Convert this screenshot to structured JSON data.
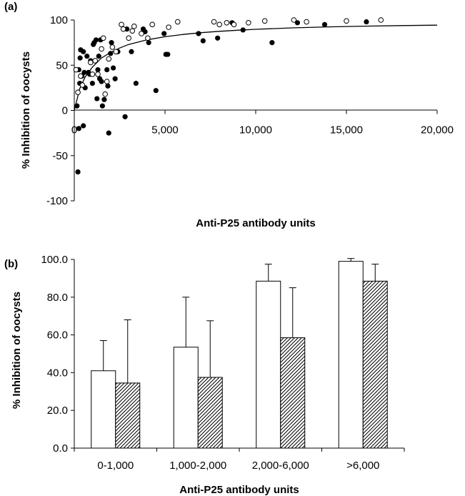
{
  "chart_data": [
    {
      "panel_label": "(a)",
      "type": "scatter",
      "title": "",
      "xlabel": "Anti-P25 antibody units",
      "ylabel": "% Inhibition of oocysts",
      "xlim": [
        0,
        20000
      ],
      "ylim": [
        -100,
        100
      ],
      "x_ticks": [
        0,
        5000,
        10000,
        15000,
        20000
      ],
      "x_tick_labels": [
        "0",
        "5,000",
        "10,000",
        "15,000",
        "20,000"
      ],
      "y_ticks": [
        -100,
        -50,
        0,
        50,
        100
      ],
      "y_tick_labels": [
        "-100",
        "-50",
        "0",
        "50",
        "100"
      ],
      "grid": false,
      "series": [
        {
          "marker": "filled-circle",
          "points": [
            [
              200,
              -68
            ],
            [
              250,
              -20
            ],
            [
              500,
              -17
            ],
            [
              1900,
              -25
            ],
            [
              2800,
              -7
            ],
            [
              150,
              5
            ],
            [
              250,
              45
            ],
            [
              300,
              30
            ],
            [
              320,
              58
            ],
            [
              350,
              67
            ],
            [
              420,
              38
            ],
            [
              500,
              65
            ],
            [
              550,
              42
            ],
            [
              600,
              25
            ],
            [
              700,
              60
            ],
            [
              780,
              42
            ],
            [
              850,
              40
            ],
            [
              900,
              55
            ],
            [
              1000,
              30
            ],
            [
              1050,
              73
            ],
            [
              1100,
              75
            ],
            [
              1200,
              78
            ],
            [
              1250,
              13
            ],
            [
              1300,
              45
            ],
            [
              1350,
              60
            ],
            [
              1400,
              35
            ],
            [
              1450,
              78
            ],
            [
              1500,
              32
            ],
            [
              1550,
              5
            ],
            [
              1650,
              12
            ],
            [
              1800,
              45
            ],
            [
              1850,
              27
            ],
            [
              2000,
              63
            ],
            [
              2050,
              75
            ],
            [
              2150,
              47
            ],
            [
              2250,
              35
            ],
            [
              2400,
              65
            ],
            [
              2900,
              90
            ],
            [
              3150,
              65
            ],
            [
              3400,
              30
            ],
            [
              3800,
              90
            ],
            [
              3900,
              87
            ],
            [
              4100,
              75
            ],
            [
              4500,
              22
            ],
            [
              4950,
              85
            ],
            [
              5050,
              62
            ],
            [
              5150,
              62
            ],
            [
              6850,
              85
            ],
            [
              7100,
              77
            ],
            [
              7900,
              80
            ],
            [
              8700,
              97
            ],
            [
              9300,
              89
            ],
            [
              10900,
              75
            ],
            [
              12300,
              97
            ],
            [
              13800,
              95
            ],
            [
              16100,
              98
            ]
          ]
        },
        {
          "marker": "open-circle",
          "points": [
            [
              100,
              45
            ],
            [
              200,
              20
            ],
            [
              350,
              38
            ],
            [
              450,
              28
            ],
            [
              900,
              53
            ],
            [
              1000,
              40
            ],
            [
              1150,
              55
            ],
            [
              1300,
              40
            ],
            [
              1500,
              68
            ],
            [
              1600,
              80
            ],
            [
              1700,
              18
            ],
            [
              1800,
              32
            ],
            [
              1900,
              57
            ],
            [
              2100,
              70
            ],
            [
              2300,
              65
            ],
            [
              2600,
              95
            ],
            [
              2700,
              90
            ],
            [
              3000,
              80
            ],
            [
              3200,
              88
            ],
            [
              3300,
              93
            ],
            [
              3700,
              85
            ],
            [
              4050,
              80
            ],
            [
              4300,
              95
            ],
            [
              5200,
              92
            ],
            [
              5700,
              98
            ],
            [
              7700,
              98
            ],
            [
              8000,
              95
            ],
            [
              8400,
              97
            ],
            [
              8800,
              95
            ],
            [
              9600,
              97
            ],
            [
              10500,
              99
            ],
            [
              12100,
              100
            ],
            [
              12800,
              98
            ],
            [
              15000,
              99
            ],
            [
              16900,
              100
            ]
          ]
        },
        {
          "marker": "fitted-line",
          "points": [
            [
              0,
              0
            ],
            [
              300,
              24
            ],
            [
              600,
              37
            ],
            [
              1000,
              48
            ],
            [
              1500,
              58
            ],
            [
              2000,
              64
            ],
            [
              2500,
              69
            ],
            [
              3000,
              73
            ],
            [
              3500,
              75.5
            ],
            [
              4000,
              78
            ],
            [
              5000,
              81.5
            ],
            [
              6000,
              84
            ],
            [
              7000,
              86
            ],
            [
              8000,
              87.5
            ],
            [
              9000,
              88.7
            ],
            [
              10000,
              89.7
            ],
            [
              12000,
              91.3
            ],
            [
              14000,
              92.4
            ],
            [
              16000,
              93.2
            ],
            [
              18000,
              93.8
            ],
            [
              20000,
              94.3
            ]
          ]
        }
      ]
    },
    {
      "panel_label": "(b)",
      "type": "bar",
      "title": "",
      "xlabel": "Anti-P25 antibody units",
      "ylabel": "% Inhibition of oocysts",
      "categories": [
        "0-1,000",
        "1,000-2,000",
        "2,000-6,000",
        ">6,000"
      ],
      "ylim": [
        0,
        100
      ],
      "y_ticks": [
        0,
        20,
        40,
        60,
        80,
        100
      ],
      "y_tick_labels": [
        "0.0",
        "20.0",
        "40.0",
        "60.0",
        "80.0",
        "100.0"
      ],
      "grid": false,
      "series": [
        {
          "fill": "white",
          "values": [
            41,
            53.5,
            88.5,
            99
          ],
          "error_upper": [
            57,
            80,
            97.5,
            100.5
          ]
        },
        {
          "fill": "hatched",
          "values": [
            34.5,
            37.5,
            58.5,
            88.5
          ],
          "error_upper": [
            68,
            67.5,
            85,
            97.5
          ]
        }
      ]
    }
  ]
}
